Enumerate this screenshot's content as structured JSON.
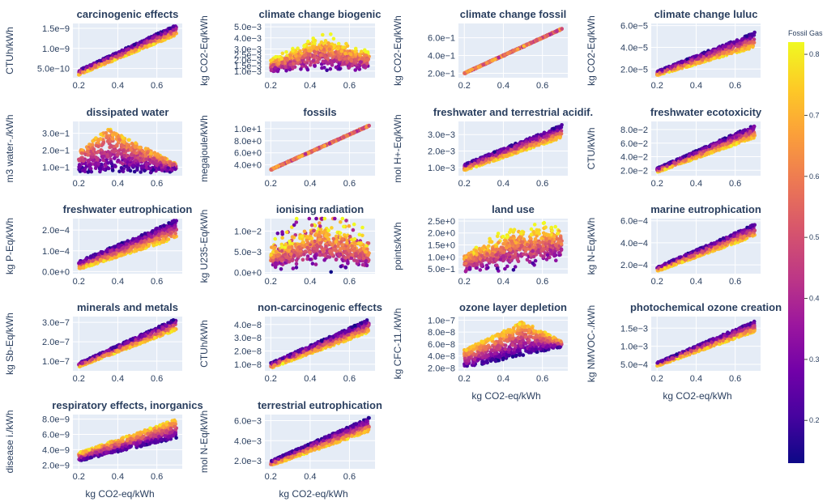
{
  "figure": {
    "x_axis_label": "kg CO2-eq/kWh"
  },
  "colorbar": {
    "title": "Fossil Gas",
    "range": [
      0.13,
      0.82
    ],
    "ticks": [
      "0.2",
      "0.3",
      "0.4",
      "0.5",
      "0.6",
      "0.7",
      "0.8"
    ],
    "tick_values": [
      0.2,
      0.3,
      0.4,
      0.5,
      0.6,
      0.7,
      0.8
    ],
    "colorscale": [
      "#0d0887",
      "#46039f",
      "#7201a8",
      "#9c179e",
      "#bd3786",
      "#d8576b",
      "#ed7953",
      "#fb9f3a",
      "#fdca26",
      "#f0f921"
    ]
  },
  "chart_data": [
    {
      "type": "scatter",
      "title": "carcinogenic effects",
      "ylabel": "CTUh/kWh",
      "pattern": "linear",
      "ylim": [
        2.7e-10,
        1.62e-09
      ],
      "yticks": [
        "5.0e−10",
        "1.0e−9",
        "1.5e−9"
      ],
      "ytick_values": [
        5e-10,
        1e-09,
        1.5e-09
      ],
      "xlim": [
        0.17,
        0.73
      ],
      "xticks": [
        "0.2",
        "0.4",
        "0.6"
      ],
      "xtick_values": [
        0.2,
        0.4,
        0.6
      ],
      "y_start": [
        4e-10,
        3.4e-10,
        4.6e-10
      ],
      "y_end": [
        1.5e-09,
        1.33e-09,
        1.59e-09
      ],
      "color_trend": "down"
    },
    {
      "type": "scatter",
      "title": "climate change biogenic",
      "ylabel": "kg CO2-Eq/kWh",
      "pattern": "blob",
      "ylim": [
        0.0004,
        0.0053
      ],
      "yticks": [
        "1.0e−3",
        "1.5e−3",
        "2.0e−3",
        "2.5e−3",
        "3.0e−3",
        "4.0e−3",
        "5.0e−3"
      ],
      "ytick_values": [
        0.001,
        0.0015,
        0.002,
        0.0025,
        0.003,
        0.004,
        0.005
      ],
      "xlim": [
        0.17,
        0.73
      ],
      "xticks": [
        "0.2",
        "0.4",
        "0.6"
      ],
      "xtick_values": [
        0.2,
        0.4,
        0.6
      ],
      "y_center": [
        0.0015,
        0.0027,
        0.002
      ],
      "y_spread": [
        0.0006,
        0.0015,
        0.0008
      ],
      "color_trend": "up"
    },
    {
      "type": "scatter",
      "title": "climate change fossil",
      "ylabel": "kg CO2-Eq/kWh",
      "pattern": "line",
      "ylim": [
        0.15,
        0.76
      ],
      "yticks": [
        "2.0e−1",
        "4.0e−1",
        "6.0e−1"
      ],
      "ytick_values": [
        0.2,
        0.4,
        0.6
      ],
      "xlim": [
        0.17,
        0.73
      ],
      "xticks": [
        "0.2",
        "0.4",
        "0.6"
      ],
      "xtick_values": [
        0.2,
        0.4,
        0.6
      ],
      "y_start": [
        0.2,
        0.2,
        0.2
      ],
      "y_end": [
        0.7,
        0.7,
        0.7
      ],
      "color_trend": "mixed"
    },
    {
      "type": "scatter",
      "title": "climate change luluc",
      "ylabel": "kg CO2-Eq/kWh",
      "pattern": "linear",
      "ylim": [
        1.2e-05,
        6.2e-05
      ],
      "yticks": [
        "2.0e−5",
        "4.0e−5",
        "6.0e−5"
      ],
      "ytick_values": [
        2e-05,
        4e-05,
        6e-05
      ],
      "xlim": [
        0.17,
        0.73
      ],
      "xticks": [
        "0.2",
        "0.4",
        "0.6"
      ],
      "xtick_values": [
        0.2,
        0.4,
        0.6
      ],
      "y_start": [
        1.6e-05,
        1.4e-05,
        1.8e-05
      ],
      "y_end": [
        4.8e-05,
        4e-05,
        5.4e-05
      ],
      "color_trend": "down"
    },
    {
      "type": "scatter",
      "title": "dissipated water",
      "ylabel": "m3 water-./kWh",
      "pattern": "triangle",
      "ylim": [
        0.05,
        0.37
      ],
      "yticks": [
        "1.0e−1",
        "2.0e−1",
        "3.0e−1"
      ],
      "ytick_values": [
        0.1,
        0.2,
        0.3
      ],
      "xlim": [
        0.17,
        0.73
      ],
      "xticks": [
        "0.2",
        "0.4",
        "0.6"
      ],
      "xtick_values": [
        0.2,
        0.4,
        0.6
      ],
      "y_start": [
        0.08,
        0.33,
        0.1
      ],
      "y_end": [
        0.08,
        0.12,
        0.09
      ],
      "color_trend": "up"
    },
    {
      "type": "scatter",
      "title": "fossils",
      "ylabel": "megajoule/kWh",
      "pattern": "line",
      "ylim": [
        2.2,
        11.2
      ],
      "yticks": [
        "4.0e+0",
        "6.0e+0",
        "8.0e+0",
        "1.0e+1"
      ],
      "ytick_values": [
        4,
        6,
        8,
        10
      ],
      "xlim": [
        0.17,
        0.73
      ],
      "xticks": [
        "0.2",
        "0.4",
        "0.6"
      ],
      "xtick_values": [
        0.2,
        0.4,
        0.6
      ],
      "y_start": [
        3.2,
        3.2,
        3.2
      ],
      "y_end": [
        10.5,
        10.5,
        10.5
      ],
      "color_trend": "mixed"
    },
    {
      "type": "scatter",
      "title": "freshwater and terrestrial acidif.",
      "ylabel": "mol H+-Eq/kWh",
      "pattern": "linear",
      "ylim": [
        0.0005,
        0.0038
      ],
      "yticks": [
        "1.0e−3",
        "2.0e−3",
        "3.0e−3"
      ],
      "ytick_values": [
        0.001,
        0.002,
        0.003
      ],
      "xlim": [
        0.17,
        0.73
      ],
      "xticks": [
        "0.2",
        "0.4",
        "0.6"
      ],
      "xtick_values": [
        0.2,
        0.4,
        0.6
      ],
      "y_start": [
        0.001,
        0.0008,
        0.0012
      ],
      "y_end": [
        0.0033,
        0.0028,
        0.0036
      ],
      "color_trend": "down"
    },
    {
      "type": "scatter",
      "title": "freshwater ecotoxicity",
      "ylabel": "CTU/kWh",
      "pattern": "linear",
      "ylim": [
        0.012,
        0.092
      ],
      "yticks": [
        "2.0e−2",
        "4.0e−2",
        "6.0e−2",
        "8.0e−2"
      ],
      "ytick_values": [
        0.02,
        0.04,
        0.06,
        0.08
      ],
      "xlim": [
        0.17,
        0.73
      ],
      "xticks": [
        "0.2",
        "0.4",
        "0.6"
      ],
      "xtick_values": [
        0.2,
        0.4,
        0.6
      ],
      "y_start": [
        0.02,
        0.017,
        0.023
      ],
      "y_end": [
        0.08,
        0.068,
        0.087
      ],
      "color_trend": "down"
    },
    {
      "type": "scatter",
      "title": "freshwater eutrophication",
      "ylabel": "kg P-Eq/kWh",
      "pattern": "linear",
      "ylim": [
        -1e-05,
        0.000255
      ],
      "yticks": [
        "0.0e+0",
        "1.0e−4",
        "2.0e−4"
      ],
      "ytick_values": [
        0,
        0.0001,
        0.0002
      ],
      "xlim": [
        0.17,
        0.73
      ],
      "xticks": [
        "0.2",
        "0.4",
        "0.6"
      ],
      "xtick_values": [
        0.2,
        0.4,
        0.6
      ],
      "y_start": [
        3e-05,
        1e-05,
        5e-05
      ],
      "y_end": [
        0.00022,
        0.00016,
        0.00025
      ],
      "color_trend": "down"
    },
    {
      "type": "scatter",
      "title": "ionising radiation",
      "ylabel": "kg U235-Eq/kWh",
      "pattern": "ion",
      "ylim": [
        -0.0003,
        0.013
      ],
      "yticks": [
        "0.0e+0",
        "5.0e−3",
        "1.0e−2"
      ],
      "ytick_values": [
        0,
        0.005,
        0.01
      ],
      "xlim": [
        0.17,
        0.73
      ],
      "xticks": [
        "0.2",
        "0.4",
        "0.6"
      ],
      "xtick_values": [
        0.2,
        0.4,
        0.6
      ],
      "y_center": [
        0.003,
        0.007,
        0.004
      ],
      "y_spread": [
        0.002,
        0.005,
        0.003
      ],
      "color_trend": "up"
    },
    {
      "type": "scatter",
      "title": "land use",
      "ylabel": "points/kWh",
      "pattern": "blob",
      "ylim": [
        0.3,
        2.6
      ],
      "yticks": [
        "5.0e−1",
        "1.0e+0",
        "1.5e+0",
        "2.0e+0",
        "2.5e+0"
      ],
      "ytick_values": [
        0.5,
        1,
        1.5,
        2,
        2.5
      ],
      "xlim": [
        0.17,
        0.73
      ],
      "xticks": [
        "0.2",
        "0.4",
        "0.6"
      ],
      "xtick_values": [
        0.2,
        0.4,
        0.6
      ],
      "y_center": [
        0.8,
        1.4,
        1.6
      ],
      "y_spread": [
        0.4,
        0.8,
        0.7
      ],
      "color_trend": "up"
    },
    {
      "type": "scatter",
      "title": "marine eutrophication",
      "ylabel": "kg N-Eq/kWh",
      "pattern": "linear",
      "ylim": [
        0.00012,
        0.00062
      ],
      "yticks": [
        "2.0e−4",
        "4.0e−4",
        "6.0e−4"
      ],
      "ytick_values": [
        0.0002,
        0.0004,
        0.0006
      ],
      "xlim": [
        0.17,
        0.73
      ],
      "xticks": [
        "0.2",
        "0.4",
        "0.6"
      ],
      "xtick_values": [
        0.2,
        0.4,
        0.6
      ],
      "y_start": [
        0.00016,
        0.00014,
        0.00018
      ],
      "y_end": [
        0.00053,
        0.00046,
        0.00057
      ],
      "color_trend": "down"
    },
    {
      "type": "scatter",
      "title": "minerals and metals",
      "ylabel": "kg Sb-Eq/kWh",
      "pattern": "linear",
      "ylim": [
        5e-08,
        3.3e-07
      ],
      "yticks": [
        "1.0e−7",
        "2.0e−7",
        "3.0e−7"
      ],
      "ytick_values": [
        1e-07,
        2e-07,
        3e-07
      ],
      "xlim": [
        0.17,
        0.73
      ],
      "xticks": [
        "0.2",
        "0.4",
        "0.6"
      ],
      "xtick_values": [
        0.2,
        0.4,
        0.6
      ],
      "y_start": [
        8e-08,
        7e-08,
        9e-08
      ],
      "y_end": [
        3e-07,
        2.6e-07,
        3.2e-07
      ],
      "color_trend": "down"
    },
    {
      "type": "scatter",
      "title": "non-carcinogenic effects",
      "ylabel": "CTUh/kWh",
      "pattern": "linear",
      "ylim": [
        5e-09,
        4.6e-08
      ],
      "yticks": [
        "1.0e−8",
        "2.0e−8",
        "3.0e−8",
        "4.0e−8"
      ],
      "ytick_values": [
        1e-08,
        2e-08,
        3e-08,
        4e-08
      ],
      "xlim": [
        0.17,
        0.73
      ],
      "xticks": [
        "0.2",
        "0.4",
        "0.6"
      ],
      "xtick_values": [
        0.2,
        0.4,
        0.6
      ],
      "y_start": [
        9e-09,
        7e-09,
        1.1e-08
      ],
      "y_end": [
        4e-08,
        3.4e-08,
        4.4e-08
      ],
      "color_trend": "down"
    },
    {
      "type": "scatter",
      "title": "ozone layer depletion",
      "ylabel": "kg CFC-11./kWh",
      "pattern": "ozone",
      "ylim": [
        1.5e-08,
        1.06e-07
      ],
      "yticks": [
        "2.0e−8",
        "4.0e−8",
        "6.0e−8",
        "8.0e−8",
        "1.0e−7"
      ],
      "ytick_values": [
        2e-08,
        4e-08,
        6e-08,
        8e-08,
        1e-07
      ],
      "xlim": [
        0.17,
        0.73
      ],
      "xticks": [
        "0.2",
        "0.4",
        "0.6"
      ],
      "xtick_values": [
        0.2,
        0.4,
        0.6
      ],
      "y_start": [
        2.5e-08,
        2e-08,
        3e-08
      ],
      "y_end": [
        5e-08,
        4e-08,
        6e-08
      ],
      "color_trend": "up"
    },
    {
      "type": "scatter",
      "title": "photochemical ozone creation",
      "ylabel": "kg NMVOC-./kWh",
      "pattern": "linear",
      "ylim": [
        0.00032,
        0.00182
      ],
      "yticks": [
        "5.0e−4",
        "1.0e−3",
        "1.5e−3"
      ],
      "ytick_values": [
        0.0005,
        0.001,
        0.0015
      ],
      "xlim": [
        0.17,
        0.73
      ],
      "xticks": [
        "0.2",
        "0.4",
        "0.6"
      ],
      "xtick_values": [
        0.2,
        0.4,
        0.6
      ],
      "y_start": [
        0.0005,
        0.00045,
        0.00055
      ],
      "y_end": [
        0.0016,
        0.0014,
        0.0017
      ],
      "color_trend": "down"
    },
    {
      "type": "scatter",
      "title": "respiratory effects, inorganics",
      "ylabel": "disease i./kWh",
      "pattern": "linear",
      "ylim": [
        1.5e-09,
        8.6e-09
      ],
      "yticks": [
        "2.0e−9",
        "4.0e−9",
        "6.0e−9",
        "8.0e−9"
      ],
      "ytick_values": [
        2e-09,
        4e-09,
        6e-09,
        8e-09
      ],
      "xlim": [
        0.17,
        0.73
      ],
      "xticks": [
        "0.2",
        "0.4",
        "0.6"
      ],
      "xtick_values": [
        0.2,
        0.4,
        0.6
      ],
      "y_start": [
        3e-09,
        2.5e-09,
        3.6e-09
      ],
      "y_end": [
        7e-09,
        5.5e-09,
        8e-09
      ],
      "color_trend": "up"
    },
    {
      "type": "scatter",
      "title": "terrestrial eutrophication",
      "ylabel": "mol N-Eq/kWh",
      "pattern": "linear",
      "ylim": [
        0.0012,
        0.0066
      ],
      "yticks": [
        "2.0e−3",
        "4.0e−3",
        "6.0e−3"
      ],
      "ytick_values": [
        0.002,
        0.004,
        0.006
      ],
      "xlim": [
        0.17,
        0.73
      ],
      "xticks": [
        "0.2",
        "0.4",
        "0.6"
      ],
      "xtick_values": [
        0.2,
        0.4,
        0.6
      ],
      "y_start": [
        0.0018,
        0.0015,
        0.002
      ],
      "y_end": [
        0.0058,
        0.0049,
        0.0063
      ],
      "color_trend": "down"
    }
  ]
}
